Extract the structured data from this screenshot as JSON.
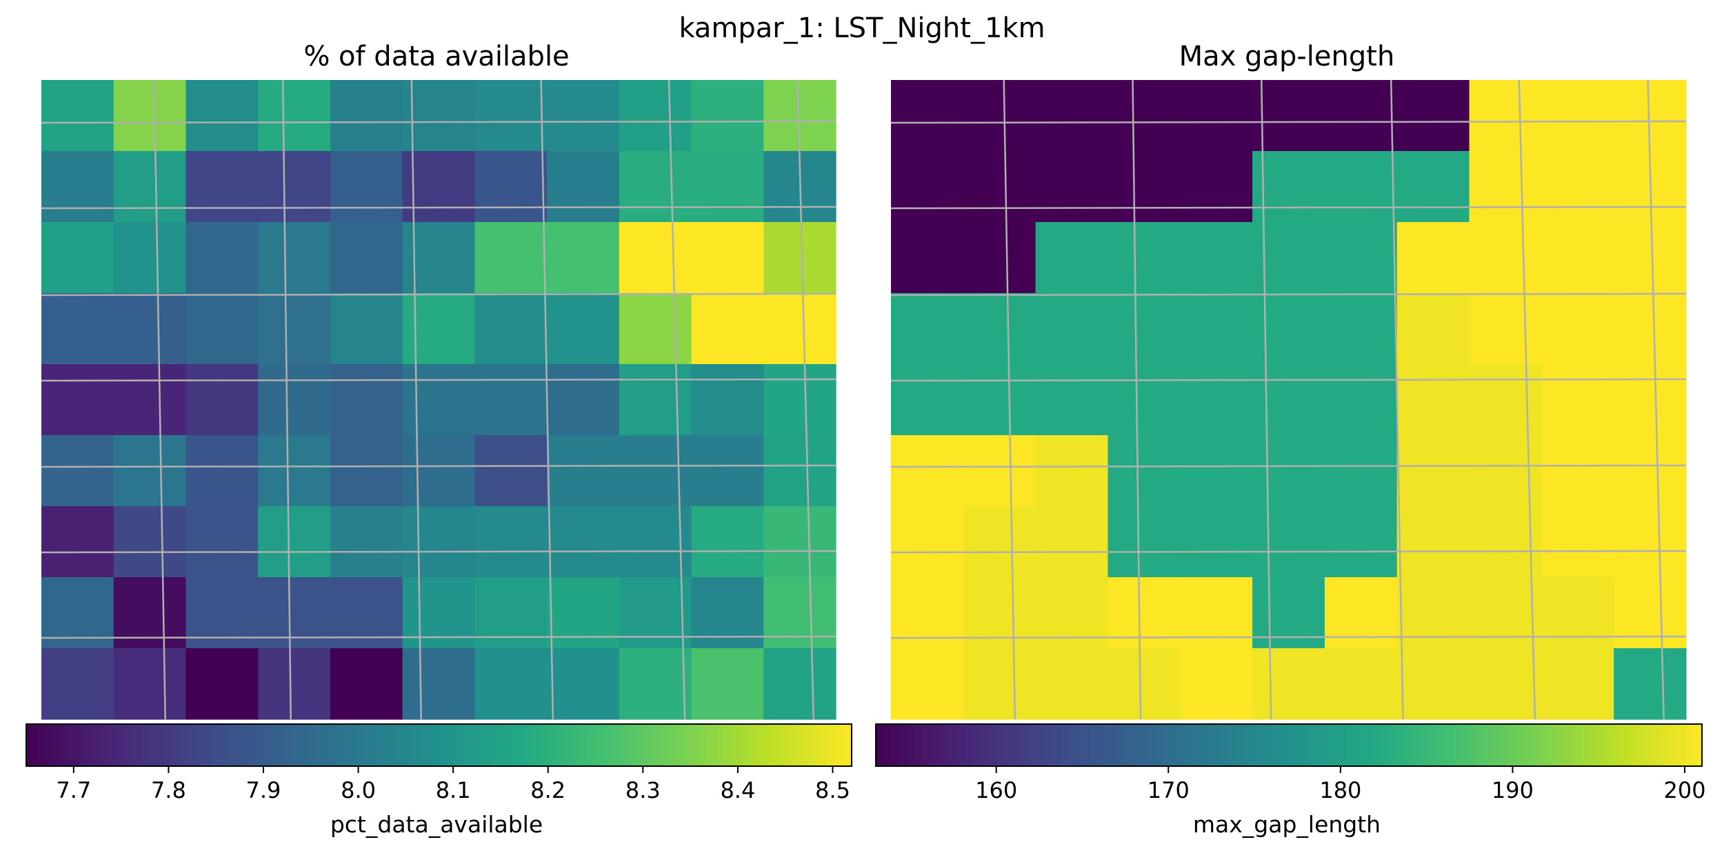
{
  "suptitle": "kampar_1: LST_Night_1km",
  "chart_data": [
    {
      "type": "heatmap",
      "title": "% of data available",
      "colormap": "viridis",
      "grid": true,
      "legend_placement": "bottom",
      "colorbar": {
        "label": "pct_data_available",
        "range": [
          7.65,
          8.52
        ],
        "ticks": [
          7.7,
          7.8,
          7.9,
          8.0,
          8.1,
          8.2,
          8.3,
          8.4,
          8.5
        ],
        "tick_labels": [
          "7.7",
          "7.8",
          "7.9",
          "8.0",
          "8.1",
          "8.2",
          "8.3",
          "8.4",
          "8.5"
        ]
      },
      "values": [
        [
          8.15,
          8.36,
          8.07,
          8.18,
          8.03,
          8.04,
          8.06,
          8.06,
          8.14,
          8.2,
          8.35
        ],
        [
          8.02,
          8.13,
          7.83,
          7.83,
          7.91,
          7.8,
          7.88,
          8.02,
          8.19,
          8.19,
          8.05
        ],
        [
          8.14,
          8.09,
          7.94,
          8.0,
          7.94,
          8.04,
          8.26,
          8.26,
          8.52,
          8.52,
          8.41
        ],
        [
          7.91,
          7.91,
          7.94,
          7.97,
          8.04,
          8.18,
          8.07,
          8.09,
          8.37,
          8.52,
          8.52
        ],
        [
          7.74,
          7.74,
          7.79,
          7.95,
          7.92,
          7.98,
          7.98,
          7.96,
          8.13,
          8.07,
          8.16
        ],
        [
          7.93,
          7.99,
          7.88,
          8.0,
          7.92,
          7.96,
          7.86,
          8.02,
          8.02,
          8.02,
          8.15
        ],
        [
          7.73,
          7.84,
          7.87,
          8.13,
          8.03,
          8.05,
          8.06,
          8.06,
          8.06,
          8.18,
          8.23
        ],
        [
          7.94,
          7.68,
          7.87,
          7.87,
          7.87,
          8.1,
          8.13,
          8.16,
          8.12,
          8.05,
          8.25
        ],
        [
          7.81,
          7.76,
          7.65,
          7.78,
          7.65,
          7.96,
          8.08,
          8.08,
          8.2,
          8.27,
          8.15
        ]
      ]
    },
    {
      "type": "heatmap",
      "title": "Max gap-length",
      "colormap": "viridis",
      "grid": true,
      "legend_placement": "bottom",
      "colorbar": {
        "label": "max_gap_length",
        "range": [
          153,
          201
        ],
        "ticks": [
          160,
          170,
          180,
          190,
          200
        ],
        "tick_labels": [
          "160",
          "170",
          "180",
          "190",
          "200"
        ]
      },
      "values": [
        [
          153,
          153,
          153,
          153,
          153,
          153,
          153,
          153,
          201,
          201,
          201
        ],
        [
          153,
          153,
          153,
          153,
          153,
          182,
          182,
          182,
          201,
          201,
          201
        ],
        [
          153,
          153,
          182,
          182,
          182,
          182,
          182,
          201,
          201,
          201,
          201
        ],
        [
          182,
          182,
          182,
          182,
          182,
          182,
          182,
          200,
          201,
          201,
          201
        ],
        [
          182,
          182,
          182,
          182,
          182,
          182,
          182,
          200,
          200,
          201,
          201
        ],
        [
          201,
          201,
          200,
          182,
          182,
          182,
          182,
          200,
          200,
          201,
          201
        ],
        [
          201,
          200,
          200,
          182,
          182,
          182,
          182,
          200,
          200,
          201,
          201
        ],
        [
          201,
          200,
          200,
          201,
          201,
          182,
          201,
          200,
          200,
          200,
          201
        ],
        [
          201,
          200,
          200,
          200,
          201,
          200,
          200,
          200,
          200,
          200,
          182
        ]
      ]
    }
  ]
}
